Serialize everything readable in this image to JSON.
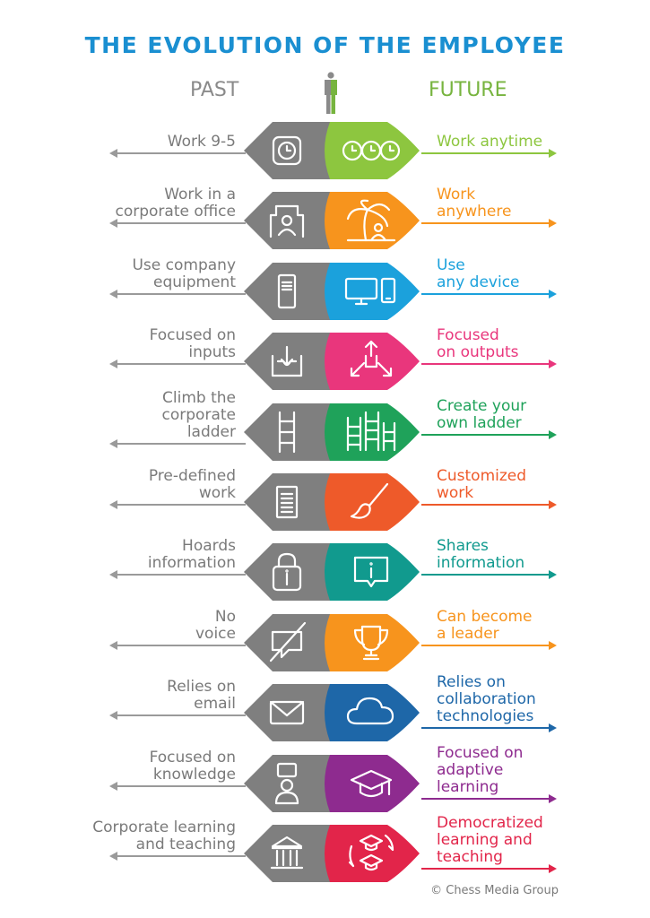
{
  "title": "THE EVOLUTION OF THE EMPLOYEE",
  "past_heading": "PAST",
  "future_heading": "FUTURE",
  "credit": "© Chess Media Group",
  "rows": [
    {
      "past": [
        "Work 9-5"
      ],
      "future": [
        "Work anytime"
      ],
      "color": "#8dc63f",
      "past_icon": "clock-icon",
      "future_icon": "three-clocks-icon"
    },
    {
      "past": [
        "Work in a",
        "corporate office"
      ],
      "future": [
        "Work",
        "anywhere"
      ],
      "color": "#f7941d",
      "past_icon": "office-cubicle-icon",
      "future_icon": "palm-tree-person-icon"
    },
    {
      "past": [
        "Use company",
        "equipment"
      ],
      "future": [
        "Use",
        "any device"
      ],
      "color": "#1ba1dc",
      "past_icon": "server-tower-icon",
      "future_icon": "monitor-phone-icon"
    },
    {
      "past": [
        "Focused on",
        "inputs"
      ],
      "future": [
        "Focused",
        "on outputs"
      ],
      "color": "#e9367c",
      "past_icon": "inbox-download-icon",
      "future_icon": "arrows-outward-icon"
    },
    {
      "past": [
        "Climb the",
        "corporate",
        "ladder"
      ],
      "future": [
        "Create your",
        "own ladder"
      ],
      "color": "#1fa25a",
      "past_icon": "ladder-icon",
      "future_icon": "multiple-ladders-icon"
    },
    {
      "past": [
        "Pre-defined",
        "work"
      ],
      "future": [
        "Customized",
        "work"
      ],
      "color": "#ee5a2a",
      "past_icon": "document-icon",
      "future_icon": "paintbrush-icon"
    },
    {
      "past": [
        "Hoards",
        "information"
      ],
      "future": [
        "Shares",
        "information"
      ],
      "color": "#119a8e",
      "past_icon": "padlock-info-icon",
      "future_icon": "info-speech-bubble-icon"
    },
    {
      "past": [
        "No",
        "voice"
      ],
      "future": [
        "Can become",
        "a leader"
      ],
      "color": "#f7941d",
      "past_icon": "muted-speech-icon",
      "future_icon": "trophy-icon"
    },
    {
      "past": [
        "Relies on",
        "email"
      ],
      "future": [
        "Relies on",
        "collaboration",
        "technologies"
      ],
      "color": "#1e67a8",
      "past_icon": "envelope-icon",
      "future_icon": "cloud-icon"
    },
    {
      "past": [
        "Focused on",
        "knowledge"
      ],
      "future": [
        "Focused on",
        "adaptive",
        "learning"
      ],
      "color": "#8e2b8f",
      "past_icon": "person-question-icon",
      "future_icon": "graduation-cap-icon"
    },
    {
      "past": [
        "Corporate learning",
        "and teaching"
      ],
      "future": [
        "Democratized",
        "learning and",
        "teaching"
      ],
      "color": "#e2254a",
      "past_icon": "institution-icon",
      "future_icon": "caps-cycle-icon"
    }
  ]
}
